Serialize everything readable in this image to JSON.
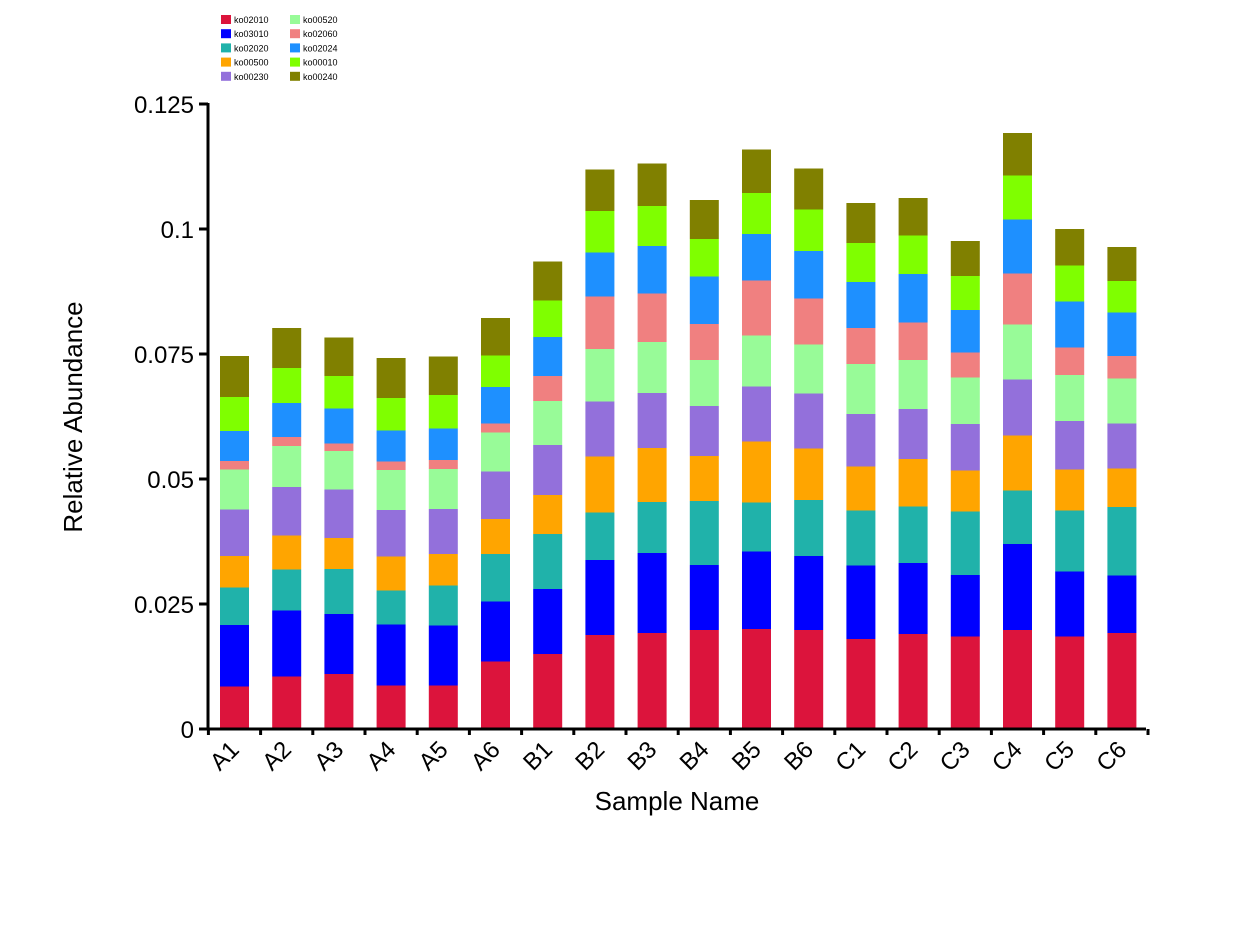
{
  "chart_data": {
    "type": "bar",
    "stacked": true,
    "xlabel": "Sample Name",
    "ylabel": "Relative Abundance",
    "ylim": [
      0,
      0.125
    ],
    "yticks": [
      "0",
      "0.025",
      "0.05",
      "0.075",
      "0.1",
      "0.125"
    ],
    "grid": false,
    "legend_position": "top-left",
    "categories": [
      "A1",
      "A2",
      "A3",
      "A4",
      "A5",
      "A6",
      "B1",
      "B2",
      "B3",
      "B4",
      "B5",
      "B6",
      "C1",
      "C2",
      "C3",
      "C4",
      "C5",
      "C6"
    ],
    "series": [
      {
        "name": "ko02010",
        "color": "#DC143C",
        "values": [
          0.0085,
          0.0105,
          0.011,
          0.0087,
          0.0087,
          0.0135,
          0.015,
          0.0188,
          0.0192,
          0.0198,
          0.02,
          0.0198,
          0.018,
          0.019,
          0.0185,
          0.0198,
          0.0185,
          0.0192
        ]
      },
      {
        "name": "ko03010",
        "color": "#0000FF",
        "values": [
          0.0123,
          0.0132,
          0.012,
          0.0122,
          0.012,
          0.012,
          0.013,
          0.015,
          0.016,
          0.013,
          0.0155,
          0.0148,
          0.0147,
          0.0142,
          0.0123,
          0.0172,
          0.013,
          0.0115
        ]
      },
      {
        "name": "ko02020",
        "color": "#20B2AA",
        "values": [
          0.0075,
          0.0082,
          0.009,
          0.0068,
          0.008,
          0.0095,
          0.011,
          0.0095,
          0.0102,
          0.0128,
          0.0098,
          0.0112,
          0.011,
          0.0113,
          0.0127,
          0.0107,
          0.0122,
          0.0137
        ]
      },
      {
        "name": "ko00500",
        "color": "#FFA500",
        "values": [
          0.0063,
          0.0068,
          0.0062,
          0.0068,
          0.0063,
          0.007,
          0.0078,
          0.0112,
          0.0108,
          0.009,
          0.0122,
          0.0103,
          0.0088,
          0.0095,
          0.0082,
          0.011,
          0.0082,
          0.0077
        ]
      },
      {
        "name": "ko00230",
        "color": "#9370DB",
        "values": [
          0.0093,
          0.0097,
          0.0097,
          0.0093,
          0.009,
          0.0095,
          0.01,
          0.011,
          0.011,
          0.01,
          0.011,
          0.011,
          0.0105,
          0.01,
          0.0093,
          0.0112,
          0.0097,
          0.009
        ]
      },
      {
        "name": "ko00520",
        "color": "#98FB98",
        "values": [
          0.008,
          0.0082,
          0.0077,
          0.008,
          0.008,
          0.0078,
          0.0088,
          0.0105,
          0.0102,
          0.0092,
          0.0102,
          0.0098,
          0.01,
          0.0098,
          0.0093,
          0.011,
          0.0092,
          0.009
        ]
      },
      {
        "name": "ko02060",
        "color": "#F08080",
        "values": [
          0.0017,
          0.0018,
          0.0015,
          0.0017,
          0.0018,
          0.0018,
          0.005,
          0.0105,
          0.0097,
          0.0072,
          0.011,
          0.0092,
          0.0072,
          0.0075,
          0.005,
          0.0102,
          0.0055,
          0.0045
        ]
      },
      {
        "name": "ko02024",
        "color": "#1E90FF",
        "values": [
          0.006,
          0.0068,
          0.007,
          0.0062,
          0.0063,
          0.0073,
          0.0078,
          0.0088,
          0.0095,
          0.0095,
          0.0093,
          0.0095,
          0.0092,
          0.0097,
          0.0085,
          0.0108,
          0.0092,
          0.0087
        ]
      },
      {
        "name": "ko00010",
        "color": "#7FFF00",
        "values": [
          0.0068,
          0.007,
          0.0065,
          0.0065,
          0.0067,
          0.0063,
          0.0073,
          0.0083,
          0.008,
          0.0075,
          0.0082,
          0.0083,
          0.0078,
          0.0077,
          0.0068,
          0.0088,
          0.0072,
          0.0063
        ]
      },
      {
        "name": "ko00240",
        "color": "#808000",
        "values": [
          0.0082,
          0.008,
          0.0077,
          0.008,
          0.0077,
          0.0075,
          0.0078,
          0.0083,
          0.0085,
          0.0078,
          0.0087,
          0.0082,
          0.008,
          0.0075,
          0.007,
          0.0085,
          0.0073,
          0.0068
        ]
      }
    ]
  }
}
